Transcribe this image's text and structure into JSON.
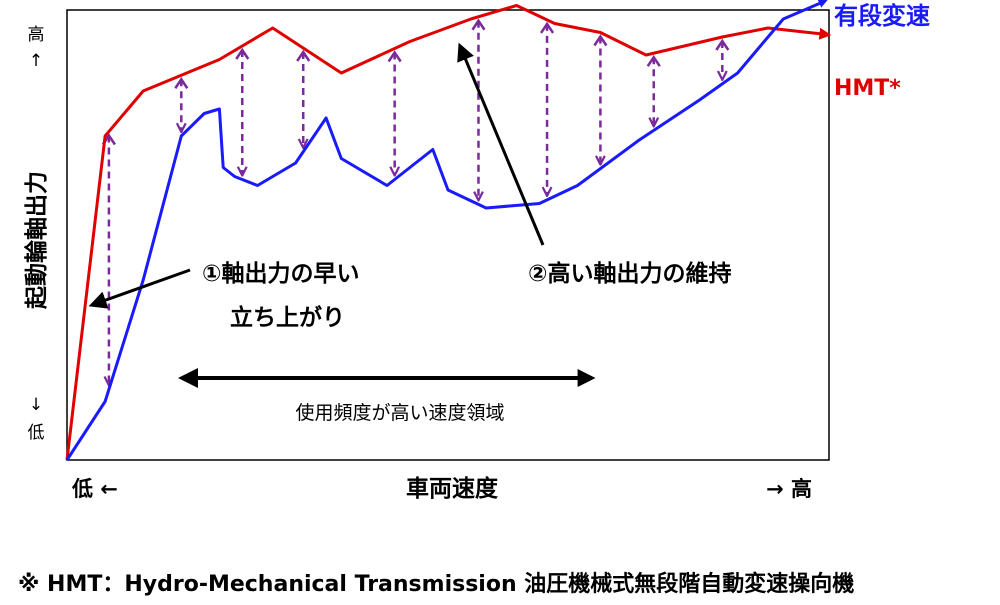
{
  "chart_data": {
    "type": "line",
    "title": "",
    "xlabel": "車両速度",
    "ylabel": "起動輪軸出力",
    "x_low_label": "低 ←",
    "x_high_label": "→ 高",
    "y_high_label": "高",
    "y_low_label": "低",
    "up_arrow_glyph": "↑",
    "down_arrow_glyph": "↓",
    "xlim": [
      0,
      100
    ],
    "ylim": [
      0,
      100
    ],
    "grid": false,
    "series": [
      {
        "name": "有段変速",
        "color": "#1a1aff",
        "points": [
          [
            0,
            0
          ],
          [
            5,
            13
          ],
          [
            10,
            40
          ],
          [
            15,
            72
          ],
          [
            18,
            77
          ],
          [
            20,
            78
          ],
          [
            20.5,
            65
          ],
          [
            22,
            63
          ],
          [
            25,
            61
          ],
          [
            30,
            66
          ],
          [
            34,
            76
          ],
          [
            36,
            67
          ],
          [
            42,
            61
          ],
          [
            48,
            69
          ],
          [
            50,
            60
          ],
          [
            55,
            56
          ],
          [
            62,
            57
          ],
          [
            67,
            61
          ],
          [
            75,
            71
          ],
          [
            83,
            80
          ],
          [
            88,
            86
          ],
          [
            91,
            92
          ],
          [
            94,
            98
          ],
          [
            99.5,
            102
          ]
        ],
        "arrow_end": true
      },
      {
        "name": "HMT*",
        "color": "#e00000",
        "points": [
          [
            0,
            0
          ],
          [
            5,
            72
          ],
          [
            10,
            82
          ],
          [
            20,
            89
          ],
          [
            27,
            96
          ],
          [
            36,
            86
          ],
          [
            45,
            93
          ],
          [
            53,
            98
          ],
          [
            59,
            101
          ],
          [
            64,
            97
          ],
          [
            70,
            95
          ],
          [
            76,
            90
          ],
          [
            86,
            94
          ],
          [
            92,
            96
          ],
          [
            100,
            94.5
          ]
        ],
        "arrow_end": true
      }
    ],
    "gap_arrows_x": [
      5.5,
      15,
      23,
      31,
      43,
      54,
      63,
      70,
      77,
      86
    ],
    "gap_arrow_color": "#7a2a9a",
    "annotations": [
      {
        "id": "rapid",
        "lines": [
          "①軸出力の早い",
          "立ち上がり"
        ]
      },
      {
        "id": "sustain",
        "lines": [
          "②高い軸出力の維持"
        ]
      },
      {
        "id": "range",
        "lines": [
          "使用頻度が高い速度領域"
        ]
      }
    ]
  },
  "footnote": "※ HMT：Hydro-Mechanical Transmission 油圧機械式無段階自動変速操向機"
}
